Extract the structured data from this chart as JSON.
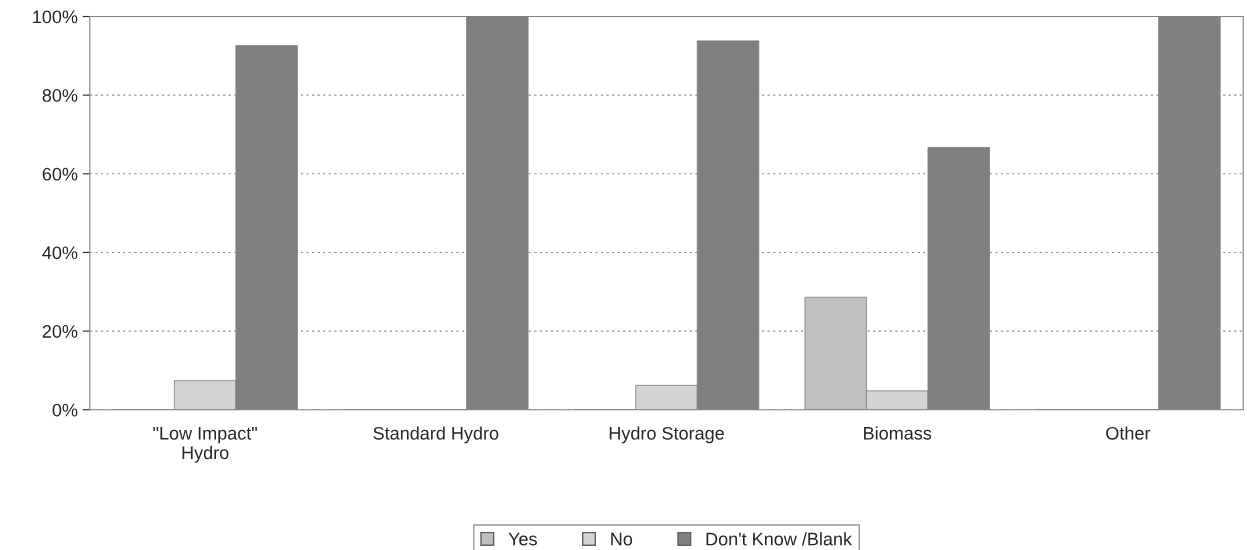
{
  "chart_data": {
    "type": "bar",
    "categories": [
      "\"Low Impact\"\nHydro",
      "Standard Hydro",
      "Hydro Storage",
      "Biomass",
      "Other"
    ],
    "series": [
      {
        "name": "Yes",
        "color": "#c0c0c0",
        "values": [
          0,
          0,
          0,
          28.6,
          0
        ]
      },
      {
        "name": "No",
        "color": "#d4d4d4",
        "values": [
          7.4,
          0,
          6.2,
          4.8,
          0
        ]
      },
      {
        "name": "Don't Know /Blank",
        "color": "#808080",
        "values": [
          92.6,
          100,
          93.8,
          66.7,
          100
        ]
      }
    ],
    "ylim": [
      0,
      100
    ],
    "yticks": [
      {
        "value": 0,
        "label": "0%"
      },
      {
        "value": 20,
        "label": "20%"
      },
      {
        "value": 40,
        "label": "40%"
      },
      {
        "value": 60,
        "label": "60%"
      },
      {
        "value": 80,
        "label": "80%"
      },
      {
        "value": 100,
        "label": "100%"
      }
    ],
    "grid": "y",
    "legend": "bottom"
  }
}
